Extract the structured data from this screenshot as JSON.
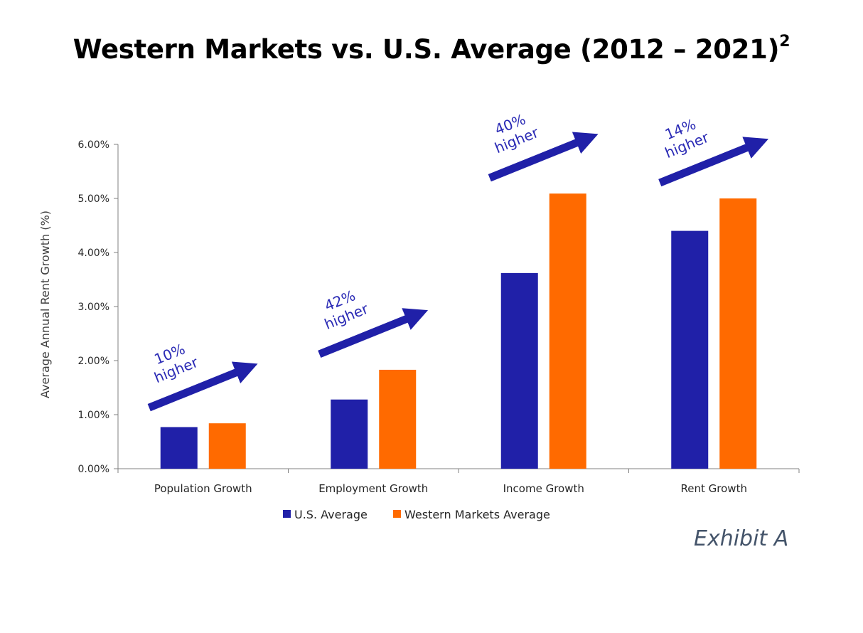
{
  "title": "Western Markets vs. U.S. Average (2012 – 2021)",
  "title_superscript": "2",
  "exhibit_label": "Exhibit A",
  "colors": {
    "us": "#2020a8",
    "western": "#ff6a00",
    "arrow": "#2020a8",
    "callout_text": "#2b2bb5"
  },
  "chart_data": {
    "type": "bar",
    "categories": [
      "Population Growth",
      "Employment Growth",
      "Income Growth",
      "Rent Growth"
    ],
    "series": [
      {
        "name": "U.S. Average",
        "values": [
          0.0077,
          0.0128,
          0.0362,
          0.044
        ]
      },
      {
        "name": "Western Markets Average",
        "values": [
          0.0084,
          0.0183,
          0.0509,
          0.05
        ]
      }
    ],
    "ylabel": "Average Annual Rent Growth (%)",
    "ylim": [
      0,
      0.06
    ],
    "yticks": [
      "0.00%",
      "1.00%",
      "2.00%",
      "3.00%",
      "4.00%",
      "5.00%",
      "6.00%"
    ],
    "legend_position": "bottom",
    "grid": false,
    "annotations": [
      {
        "category": "Population Growth",
        "line1": "10%",
        "line2": "higher"
      },
      {
        "category": "Employment Growth",
        "line1": "42%",
        "line2": "higher"
      },
      {
        "category": "Income Growth",
        "line1": "40%",
        "line2": "higher"
      },
      {
        "category": "Rent Growth",
        "line1": "14%",
        "line2": "higher"
      }
    ]
  }
}
